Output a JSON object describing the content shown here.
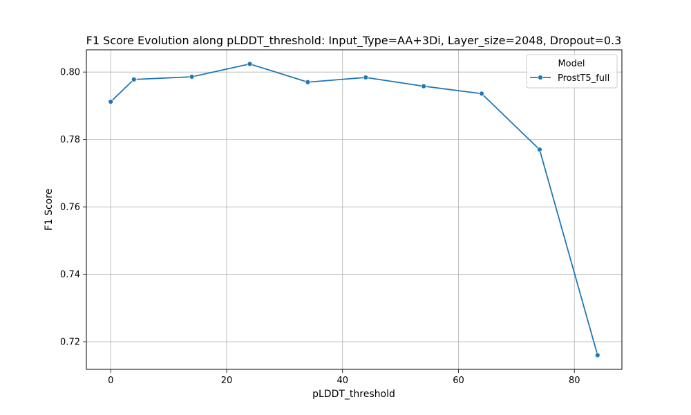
{
  "chart_data": {
    "type": "line",
    "title": "F1 Score Evolution along pLDDT_threshold: Input_Type=AA+3Di, Layer_size=2048, Dropout=0.3",
    "xlabel": "pLDDT_threshold",
    "ylabel": "F1 Score",
    "xlim": [
      -4.2,
      88.2
    ],
    "ylim": [
      0.7118,
      0.8066
    ],
    "x_ticks": [
      0,
      20,
      40,
      60,
      80
    ],
    "y_ticks": [
      0.72,
      0.74,
      0.76,
      0.78,
      0.8
    ],
    "x_tick_labels": [
      "0",
      "20",
      "40",
      "60",
      "80"
    ],
    "y_tick_labels": [
      "0.72",
      "0.74",
      "0.76",
      "0.78",
      "0.80"
    ],
    "grid": true,
    "legend": {
      "title": "Model",
      "placement": "top-right"
    },
    "series": [
      {
        "name": "ProstT5_full",
        "color": "#1f77b4",
        "marker": "circle",
        "x": [
          0,
          4,
          14,
          24,
          34,
          44,
          54,
          64,
          74,
          84
        ],
        "y": [
          0.7912,
          0.7978,
          0.7986,
          0.8024,
          0.797,
          0.7984,
          0.7958,
          0.7936,
          0.777,
          0.716
        ]
      }
    ]
  }
}
